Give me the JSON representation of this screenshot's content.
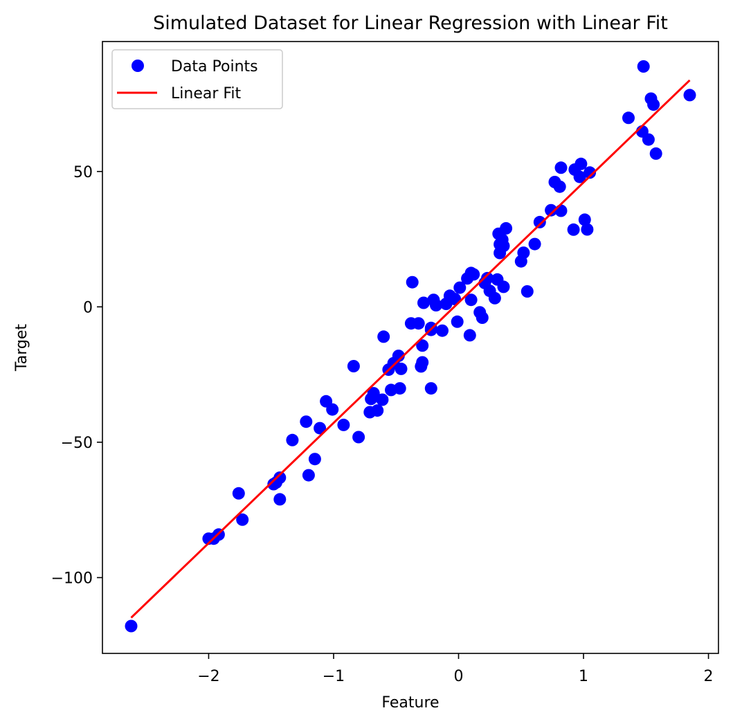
{
  "chart_data": {
    "type": "scatter",
    "title": "Simulated Dataset for Linear Regression with Linear Fit",
    "xlabel": "Feature",
    "ylabel": "Target",
    "xlim": [
      -2.85,
      2.08
    ],
    "ylim": [
      -128,
      98
    ],
    "xticks": [
      -2,
      -1,
      0,
      1,
      2
    ],
    "xtick_labels": [
      "−2",
      "−1",
      "0",
      "1",
      "2"
    ],
    "yticks": [
      -100,
      -50,
      0,
      50
    ],
    "ytick_labels": [
      "−100",
      "−50",
      "0",
      "50"
    ],
    "grid": false,
    "legend": {
      "placement": "upper-left",
      "entries": [
        "Data Points",
        "Linear Fit"
      ]
    },
    "colors": {
      "points": "#0000ff",
      "fit": "#ff0000"
    },
    "series": [
      {
        "name": "Data Points",
        "kind": "scatter",
        "points": [
          [
            -2.62,
            -117.9
          ],
          [
            -2.0,
            -85.6
          ],
          [
            -1.96,
            -85.6
          ],
          [
            -1.92,
            -84.1
          ],
          [
            -1.76,
            -68.9
          ],
          [
            -1.73,
            -78.6
          ],
          [
            -1.48,
            -65.5
          ],
          [
            -1.46,
            -64.9
          ],
          [
            -1.43,
            -63.1
          ],
          [
            -1.43,
            -71.1
          ],
          [
            -1.33,
            -49.2
          ],
          [
            -1.22,
            -42.4
          ],
          [
            -1.2,
            -62.2
          ],
          [
            -1.15,
            -56.2
          ],
          [
            -1.11,
            -44.8
          ],
          [
            -1.06,
            -34.9
          ],
          [
            -1.01,
            -37.9
          ],
          [
            -0.92,
            -43.6
          ],
          [
            -0.84,
            -21.9
          ],
          [
            -0.8,
            -48.1
          ],
          [
            -0.71,
            -38.9
          ],
          [
            -0.7,
            -34.0
          ],
          [
            -0.68,
            -31.9
          ],
          [
            -0.65,
            -38.3
          ],
          [
            -0.61,
            -34.3
          ],
          [
            -0.6,
            -11.0
          ],
          [
            -0.56,
            -23.2
          ],
          [
            -0.54,
            -30.7
          ],
          [
            -0.52,
            -20.8
          ],
          [
            -0.48,
            -18.1
          ],
          [
            -0.47,
            -30.1
          ],
          [
            -0.46,
            -22.9
          ],
          [
            -0.38,
            -6.1
          ],
          [
            -0.37,
            9.1
          ],
          [
            -0.32,
            -6.1
          ],
          [
            -0.3,
            -22.0
          ],
          [
            -0.29,
            -20.5
          ],
          [
            -0.29,
            -14.3
          ],
          [
            -0.28,
            1.5
          ],
          [
            -0.22,
            -30.1
          ],
          [
            -0.22,
            -8.5
          ],
          [
            -0.22,
            -7.8
          ],
          [
            -0.2,
            2.6
          ],
          [
            -0.18,
            0.6
          ],
          [
            -0.13,
            -8.8
          ],
          [
            -0.1,
            1.1
          ],
          [
            -0.07,
            4.1
          ],
          [
            -0.03,
            2.9
          ],
          [
            -0.01,
            -5.5
          ],
          [
            0.01,
            7.1
          ],
          [
            0.07,
            10.5
          ],
          [
            0.09,
            -10.5
          ],
          [
            0.1,
            12.5
          ],
          [
            0.1,
            2.6
          ],
          [
            0.12,
            12.0
          ],
          [
            0.17,
            -2.0
          ],
          [
            0.19,
            -4.0
          ],
          [
            0.21,
            8.8
          ],
          [
            0.23,
            10.6
          ],
          [
            0.25,
            5.9
          ],
          [
            0.29,
            3.2
          ],
          [
            0.31,
            10.1
          ],
          [
            0.32,
            27.0
          ],
          [
            0.33,
            23.1
          ],
          [
            0.33,
            19.9
          ],
          [
            0.35,
            24.8
          ],
          [
            0.36,
            22.5
          ],
          [
            0.36,
            7.4
          ],
          [
            0.38,
            29.0
          ],
          [
            0.5,
            16.8
          ],
          [
            0.52,
            20.0
          ],
          [
            0.55,
            5.7
          ],
          [
            0.61,
            23.2
          ],
          [
            0.65,
            31.3
          ],
          [
            0.74,
            35.7
          ],
          [
            0.77,
            46.1
          ],
          [
            0.81,
            44.4
          ],
          [
            0.82,
            51.4
          ],
          [
            0.82,
            35.5
          ],
          [
            0.92,
            28.5
          ],
          [
            0.93,
            50.7
          ],
          [
            0.97,
            48.0
          ],
          [
            0.98,
            52.8
          ],
          [
            1.01,
            32.2
          ],
          [
            1.03,
            28.6
          ],
          [
            1.05,
            49.6
          ],
          [
            1.36,
            69.8
          ],
          [
            1.47,
            64.8
          ],
          [
            1.48,
            88.8
          ],
          [
            1.52,
            61.8
          ],
          [
            1.54,
            76.9
          ],
          [
            1.56,
            74.7
          ],
          [
            1.58,
            56.6
          ],
          [
            1.85,
            78.2
          ]
        ]
      },
      {
        "name": "Linear Fit",
        "kind": "line",
        "points": [
          [
            -2.62,
            -114.8
          ],
          [
            1.85,
            83.7
          ]
        ]
      }
    ]
  }
}
